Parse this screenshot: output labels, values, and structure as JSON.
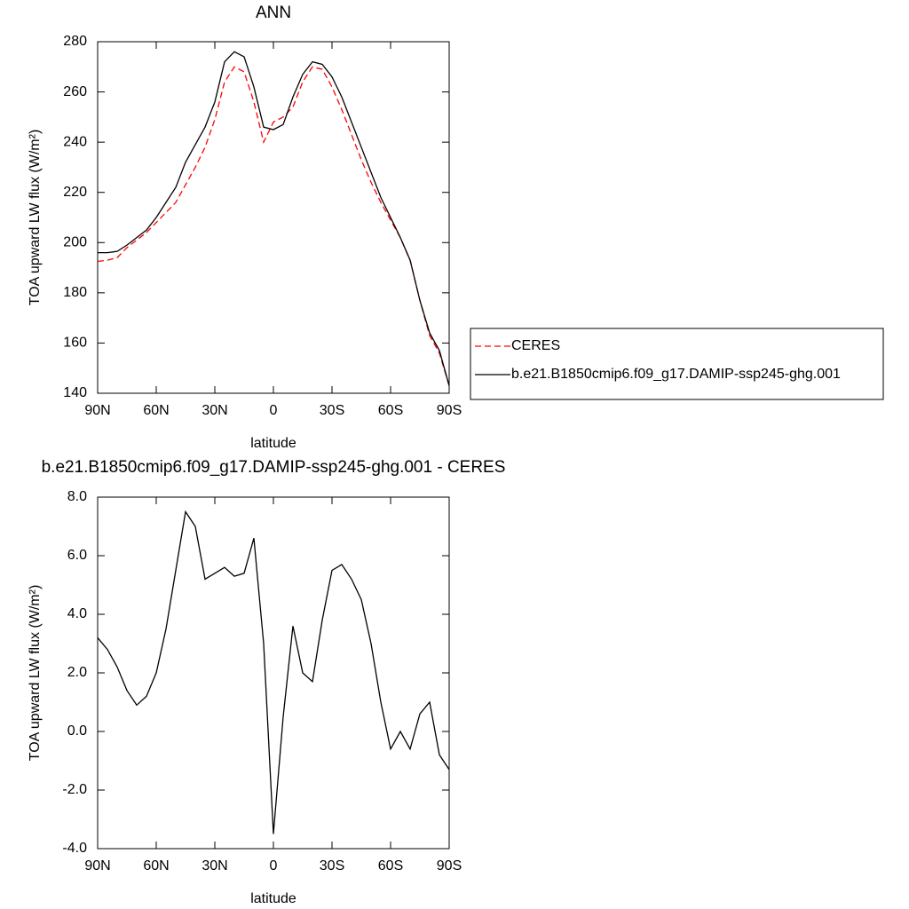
{
  "chart_data": [
    {
      "type": "line",
      "title": "ANN",
      "xlabel": "latitude",
      "ylabel": "TOA upward LW flux (W/m²)",
      "x": [
        90,
        85,
        80,
        75,
        70,
        65,
        60,
        55,
        50,
        45,
        40,
        35,
        30,
        25,
        20,
        15,
        10,
        5,
        0,
        -5,
        -10,
        -15,
        -20,
        -25,
        -30,
        -35,
        -40,
        -45,
        -50,
        -55,
        -60,
        -65,
        -70,
        -75,
        -80,
        -85,
        -90
      ],
      "series": [
        {
          "name": "CERES",
          "color": "#ff0000",
          "line_style": "dashed",
          "values": [
            192.5,
            193,
            194,
            198,
            201,
            204,
            208,
            212,
            216,
            223,
            230,
            238,
            249,
            264,
            270,
            268,
            256,
            240,
            248,
            250,
            254,
            264,
            270,
            269,
            262,
            253,
            243,
            233,
            224,
            216,
            209,
            202,
            193,
            177,
            163,
            156,
            143
          ]
        },
        {
          "name": "b.e21.B1850cmip6.f09_g17.DAMIP-ssp245-ghg.001",
          "color": "#000000",
          "line_style": "solid",
          "values": [
            196,
            196,
            196.5,
            199,
            202,
            205,
            210,
            216,
            222,
            232,
            239,
            246,
            256,
            272,
            276,
            274,
            262,
            246,
            245,
            247,
            258,
            267,
            272,
            271,
            266,
            258,
            248,
            238,
            228,
            218,
            210,
            202,
            193,
            177,
            164,
            157,
            143
          ]
        }
      ],
      "xlim": [
        90,
        -90
      ],
      "xticks": [
        {
          "value": 90,
          "label": "90N"
        },
        {
          "value": 60,
          "label": "60N"
        },
        {
          "value": 30,
          "label": "30N"
        },
        0,
        {
          "value": -30,
          "label": "30S"
        },
        {
          "value": -60,
          "label": "60S"
        },
        {
          "value": -90,
          "label": "90S"
        }
      ],
      "ylim": [
        140,
        280
      ],
      "yticks": [
        140,
        160,
        180,
        200,
        220,
        240,
        260,
        280
      ],
      "legend": "right"
    },
    {
      "type": "line",
      "title": "b.e21.B1850cmip6.f09_g17.DAMIP-ssp245-ghg.001 - CERES",
      "xlabel": "latitude",
      "ylabel": "TOA upward LW flux (W/m²)",
      "x": [
        90,
        85,
        80,
        75,
        70,
        65,
        60,
        55,
        50,
        45,
        40,
        35,
        30,
        25,
        20,
        15,
        10,
        5,
        0,
        -5,
        -10,
        -15,
        -20,
        -25,
        -30,
        -35,
        -40,
        -45,
        -50,
        -55,
        -60,
        -65,
        -70,
        -75,
        -80,
        -85,
        -90
      ],
      "color": "#000000",
      "values": [
        3.2,
        2.8,
        2.2,
        1.4,
        0.9,
        1.2,
        2.0,
        3.5,
        5.5,
        7.5,
        7.0,
        5.2,
        5.4,
        5.6,
        5.3,
        5.4,
        6.6,
        3.0,
        -3.5,
        0.5,
        3.6,
        2.0,
        1.7,
        3.8,
        5.5,
        5.7,
        5.2,
        4.5,
        3.0,
        1.0,
        -0.6,
        0.0,
        -0.6,
        0.6,
        1.0,
        -0.8,
        -1.3
      ],
      "xlim": [
        90,
        -90
      ],
      "xticks": [
        {
          "value": 90,
          "label": "90N"
        },
        {
          "value": 60,
          "label": "60N"
        },
        {
          "value": 30,
          "label": "30N"
        },
        0,
        {
          "value": -30,
          "label": "30S"
        },
        {
          "value": -60,
          "label": "60S"
        },
        {
          "value": -90,
          "label": "90S"
        }
      ],
      "ylim": [
        -4,
        8
      ],
      "yticks": [
        {
          "value": -4,
          "label": "-4.0"
        },
        {
          "value": -2,
          "label": "-2.0"
        },
        {
          "value": 0,
          "label": "0.0"
        },
        {
          "value": 2,
          "label": "2.0"
        },
        {
          "value": 4,
          "label": "4.0"
        },
        {
          "value": 6,
          "label": "6.0"
        },
        {
          "value": 8,
          "label": "8.0"
        }
      ]
    }
  ]
}
